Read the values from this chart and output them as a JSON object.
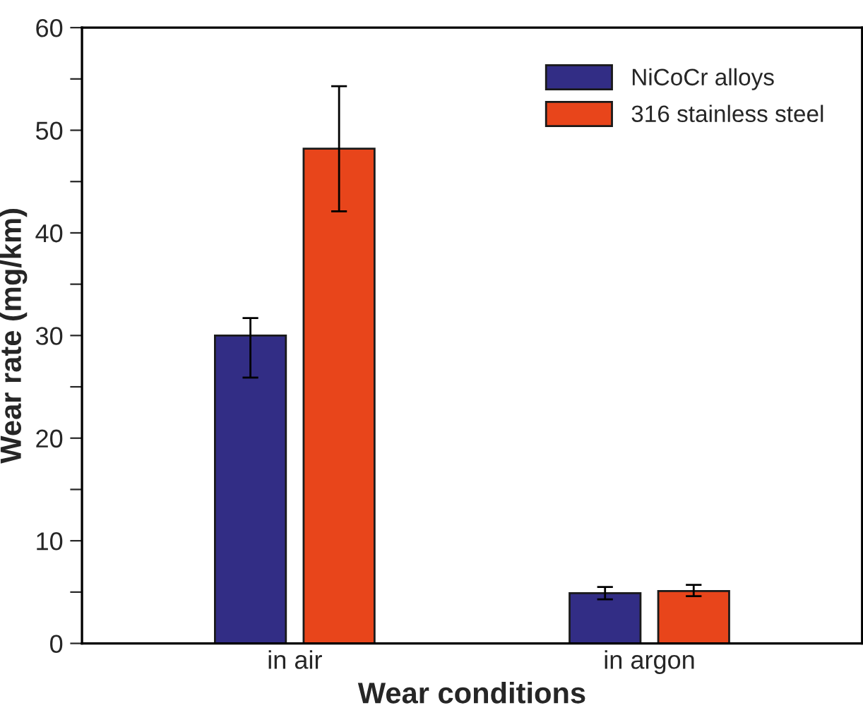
{
  "chart_data": {
    "type": "bar",
    "xlabel": "Wear conditions",
    "ylabel": "Wear rate (mg/km)",
    "categories": [
      "in air",
      "in argon"
    ],
    "series": [
      {
        "name": "NiCoCr alloys",
        "color": "#322d85",
        "values": [
          30,
          4.9
        ],
        "errors": [
          [
            25.9,
            31.7
          ],
          [
            4.3,
            5.5
          ]
        ]
      },
      {
        "name": "316 stainless steel",
        "color": "#e8451b",
        "values": [
          48.2,
          5.1
        ],
        "errors": [
          [
            42.1,
            54.3
          ],
          [
            4.6,
            5.7
          ]
        ]
      }
    ],
    "ylim": [
      0,
      60
    ],
    "yticks": [
      0,
      {
        "value": 5,
        "label": null
      },
      10,
      {
        "value": 15,
        "label": null
      },
      20,
      {
        "value": 25,
        "label": null
      },
      30,
      {
        "value": 35,
        "label": null
      },
      40,
      {
        "value": 45,
        "label": null
      },
      50,
      {
        "value": 55,
        "label": null
      },
      60
    ],
    "grid": false,
    "legend": "top right"
  }
}
